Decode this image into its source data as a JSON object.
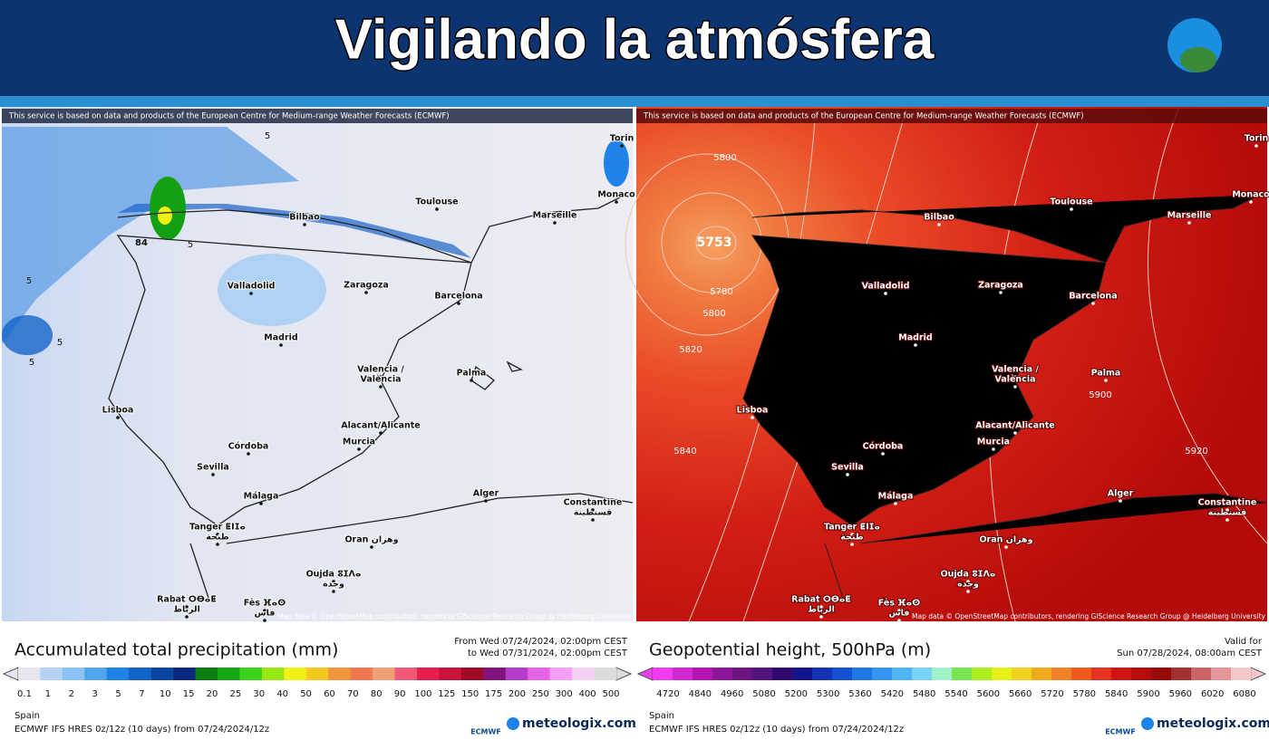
{
  "header": {
    "title": "Vigilando la atmósfera"
  },
  "notice": "This service is based on data and products of the European Centre for Medium-range Weather Forecasts (ECMWF)",
  "attribution": "Map data © OpenStreetMap contributors, rendering GIScience Research Group @ Heidelberg University",
  "cities": [
    "Bilbao",
    "Toulouse",
    "Marseille",
    "Monaco",
    "Torin",
    "Valladolid",
    "Zaragoza",
    "Barcelona",
    "Madrid",
    "Valencia /",
    "València",
    "Palma",
    "Lisboa",
    "Córdoba",
    "Sevilla",
    "Alacant/Alicante",
    "Murcia",
    "Málaga",
    "Tanger ⵟⵏⵊⴰ",
    "طنجة",
    "Alger",
    "Constantine",
    "قسنطينة",
    "Oran وهران",
    "Oujda ⵓⵊⴷⴰ",
    "وجدة",
    "Rabat ⵔⴱⴰⵟ",
    "الرباط",
    "Fès ⴼⴰⵙ",
    "فاس"
  ],
  "panels": [
    {
      "map_labels": [
        "84",
        "5",
        "5",
        "5",
        "5",
        "5"
      ],
      "legend_title": "Accumulated total precipitation (mm)",
      "date_lines": [
        "From Wed 07/24/2024, 02:00pm CEST",
        "to Wed 07/31/2024, 02:00pm CEST"
      ],
      "scale_labels": [
        "0.1",
        "1",
        "2",
        "3",
        "5",
        "7",
        "10",
        "15",
        "20",
        "25",
        "30",
        "40",
        "50",
        "60",
        "70",
        "80",
        "90",
        "100",
        "125",
        "150",
        "175",
        "200",
        "250",
        "300",
        "400",
        "500"
      ],
      "scale_colors": [
        "#e6e6ee",
        "#b4d2f5",
        "#8cc3f5",
        "#50a5f0",
        "#1e82e6",
        "#1464c8",
        "#0a46a0",
        "#0a287d",
        "#0a7d14",
        "#14a514",
        "#3cd21e",
        "#96e614",
        "#f0f014",
        "#f0c81e",
        "#f0963c",
        "#f07850",
        "#f0a078",
        "#f05a78",
        "#e61e50",
        "#c8143c",
        "#a00a28",
        "#82147d",
        "#b43cc8",
        "#e664e6",
        "#f5a0f5",
        "#f5d2f5",
        "#dcdcdc"
      ],
      "region": "Spain",
      "model": "ECMWF IFS HRES 0z/12z (10 days) from 07/24/2024/12z",
      "brand1": "ECMWF",
      "brand2": "meteologix.com"
    },
    {
      "map_labels": [
        "5800",
        "5753",
        "5780",
        "5800",
        "5820",
        "5840",
        "5900",
        "5920"
      ],
      "legend_title": "Geopotential height, 500hPa (m)",
      "date_lines": [
        "Valid for",
        "Sun 07/28/2024, 08:00am CEST"
      ],
      "scale_labels": [
        "4720",
        "4840",
        "4960",
        "5080",
        "5200",
        "5300",
        "5360",
        "5420",
        "5480",
        "5540",
        "5600",
        "5660",
        "5720",
        "5780",
        "5840",
        "5900",
        "5960",
        "6020",
        "6080"
      ],
      "scale_colors": [
        "#f03cf0",
        "#d228d2",
        "#b414b4",
        "#8c1496",
        "#6e1482",
        "#50147d",
        "#320a6e",
        "#14148c",
        "#1432b4",
        "#1450d2",
        "#1e78e6",
        "#3296f0",
        "#50b4f5",
        "#78d2f5",
        "#a0f0c8",
        "#78e650",
        "#aaf01e",
        "#e6f014",
        "#f0d21e",
        "#f0aa1e",
        "#f08228",
        "#f05a1e",
        "#e6321e",
        "#d21414",
        "#b40a0a",
        "#960a0a",
        "#a03232",
        "#c86464",
        "#e69696",
        "#f5c8c8"
      ],
      "region": "Spain",
      "model": "ECMWF IFS HRES 0z/12z (10 days) from 07/24/2024/12z",
      "brand1": "ECMWF",
      "brand2": "meteologix.com"
    }
  ]
}
